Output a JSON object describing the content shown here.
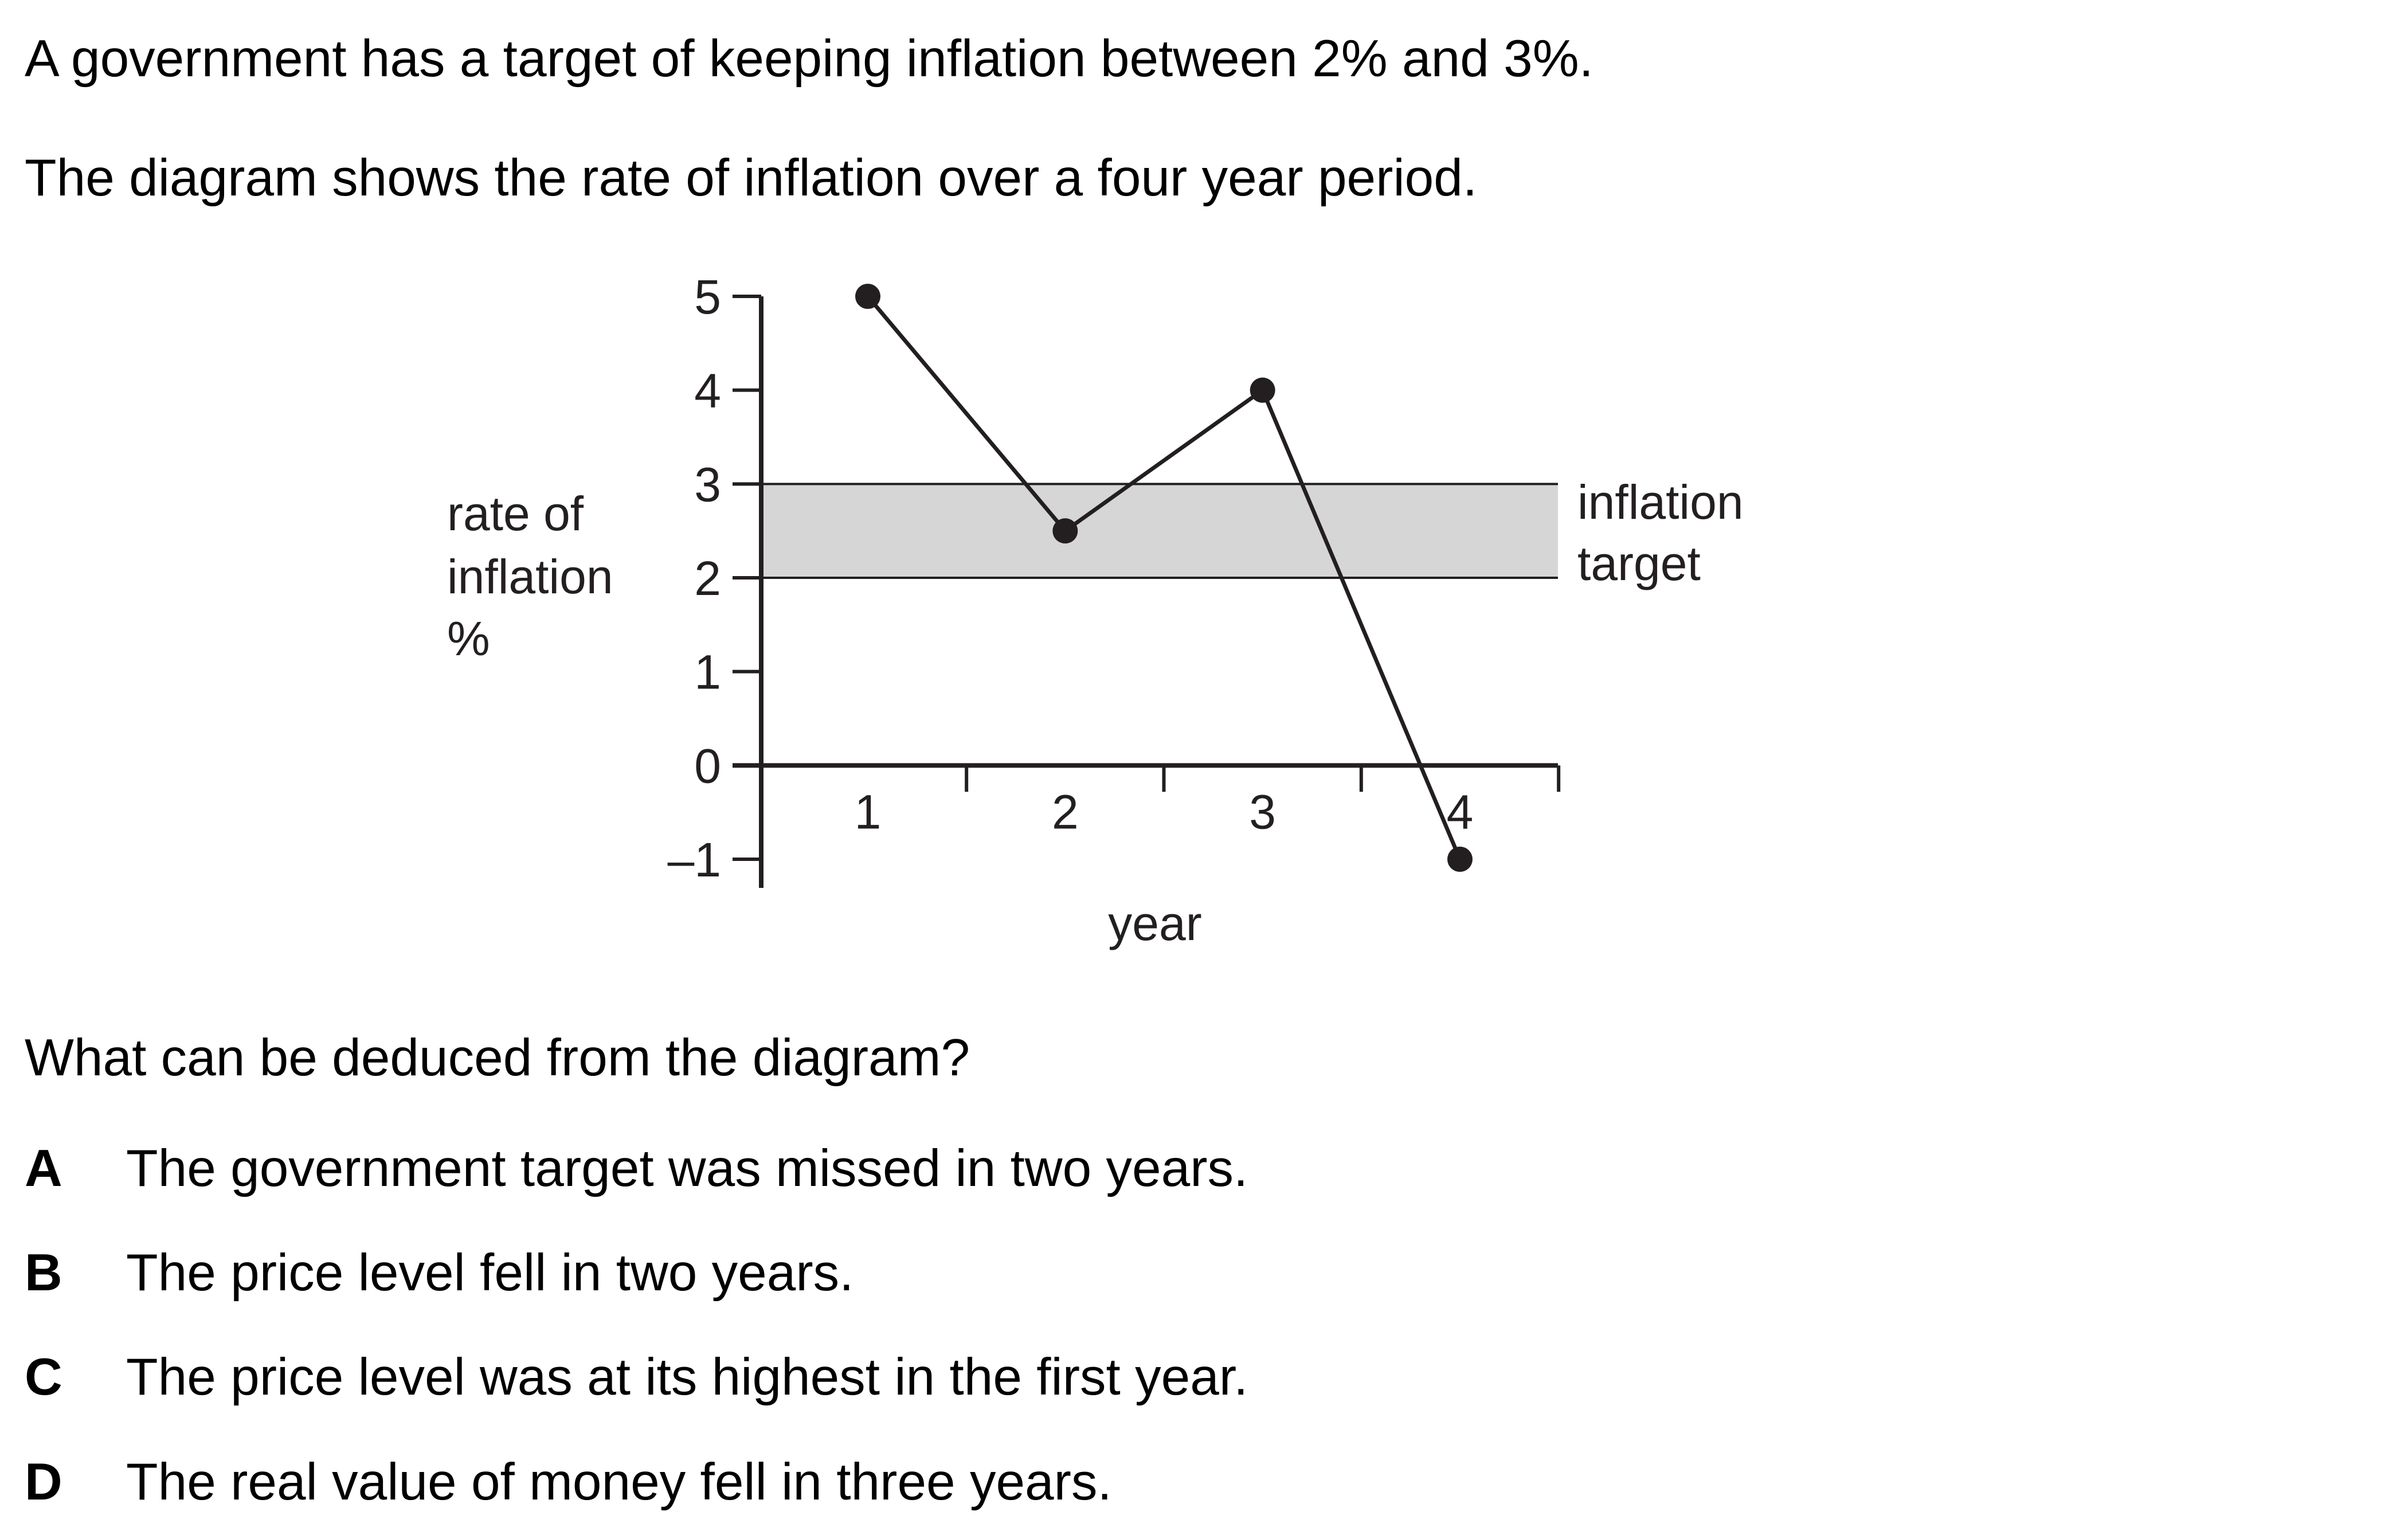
{
  "intro": {
    "line1": "A government has a target of keeping inflation between 2% and 3%.",
    "line2": "The diagram shows the rate of inflation over a four year period."
  },
  "question": "What can be deduced from the diagram?",
  "options": [
    {
      "letter": "A",
      "text": "The government target was missed in two years."
    },
    {
      "letter": "B",
      "text": "The price level fell in two years."
    },
    {
      "letter": "C",
      "text": "The price level was at its highest in the first year."
    },
    {
      "letter": "D",
      "text": "The real value of money fell in three years."
    }
  ],
  "chart_data": {
    "type": "line",
    "xlabel": "year",
    "ylabel_lines": [
      "rate of",
      "inflation",
      "%"
    ],
    "x": [
      1,
      2,
      3,
      4
    ],
    "y": [
      5,
      2.5,
      4,
      -1
    ],
    "x_ticks": [
      "1",
      "2",
      "3",
      "4"
    ],
    "y_ticks": [
      "–1",
      "0",
      "1",
      "2",
      "3",
      "4",
      "5"
    ],
    "ylim": [
      -1,
      5
    ],
    "xlim": [
      0.5,
      4.5
    ],
    "target_band": {
      "low": 2,
      "high": 3,
      "label_lines": [
        "inflation",
        "target"
      ],
      "color": "#d6d6d6"
    },
    "grid": false,
    "line_color": "#231f20"
  }
}
